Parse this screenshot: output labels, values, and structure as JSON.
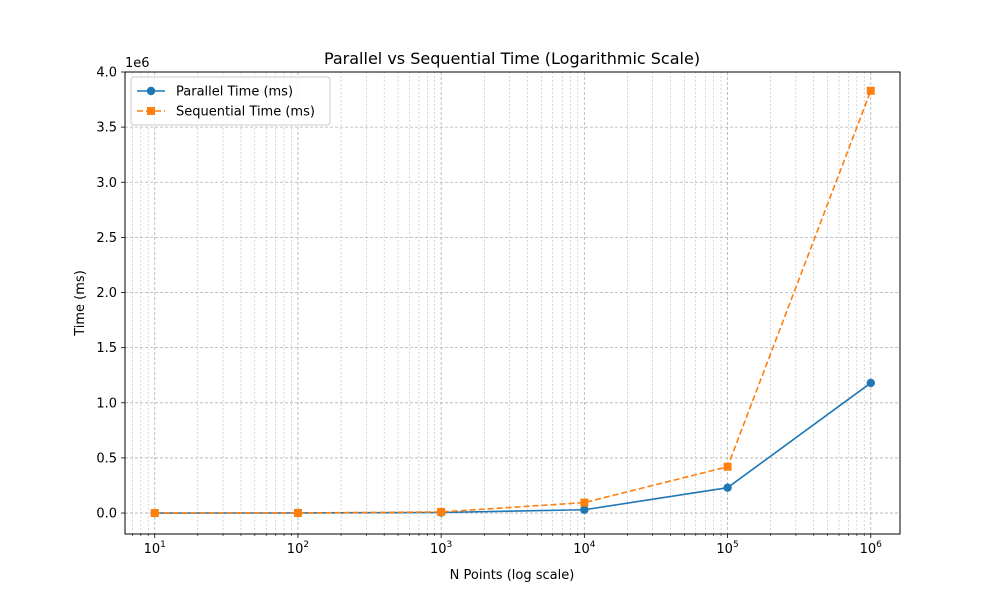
{
  "chart_data": {
    "type": "line",
    "title": "Parallel vs Sequential Time (Logarithmic Scale)",
    "xlabel": "N Points (log scale)",
    "ylabel": "Time (ms)",
    "x_scale": "log",
    "x": [
      10,
      100,
      1000,
      10000,
      100000,
      1000000
    ],
    "xlim": [
      6.2,
      1600000
    ],
    "ylim": [
      -190000,
      4000000
    ],
    "y_offset_text": "1e6",
    "x_ticks": [
      {
        "value": 10,
        "base": "10",
        "exp": "1"
      },
      {
        "value": 100,
        "base": "10",
        "exp": "2"
      },
      {
        "value": 1000,
        "base": "10",
        "exp": "3"
      },
      {
        "value": 10000,
        "base": "10",
        "exp": "4"
      },
      {
        "value": 100000,
        "base": "10",
        "exp": "5"
      },
      {
        "value": 1000000,
        "base": "10",
        "exp": "6"
      }
    ],
    "y_ticks": [
      {
        "value": 0,
        "label": "0.0"
      },
      {
        "value": 500000,
        "label": "0.5"
      },
      {
        "value": 1000000,
        "label": "1.0"
      },
      {
        "value": 1500000,
        "label": "1.5"
      },
      {
        "value": 2000000,
        "label": "2.0"
      },
      {
        "value": 2500000,
        "label": "2.5"
      },
      {
        "value": 3000000,
        "label": "3.0"
      },
      {
        "value": 3500000,
        "label": "3.5"
      },
      {
        "value": 4000000,
        "label": "4.0"
      }
    ],
    "grid": true,
    "legend_position": "upper-left",
    "series": [
      {
        "name": "Parallel Time (ms)",
        "values": [
          80,
          600,
          5000,
          30000,
          230000,
          1180000
        ],
        "color": "#1f77b4",
        "line_style": "solid",
        "marker": "circle"
      },
      {
        "name": "Sequential Time (ms)",
        "values": [
          100,
          1000,
          10000,
          95000,
          420000,
          3830000
        ],
        "color": "#ff7f0e",
        "line_style": "dashed",
        "marker": "square"
      }
    ]
  }
}
